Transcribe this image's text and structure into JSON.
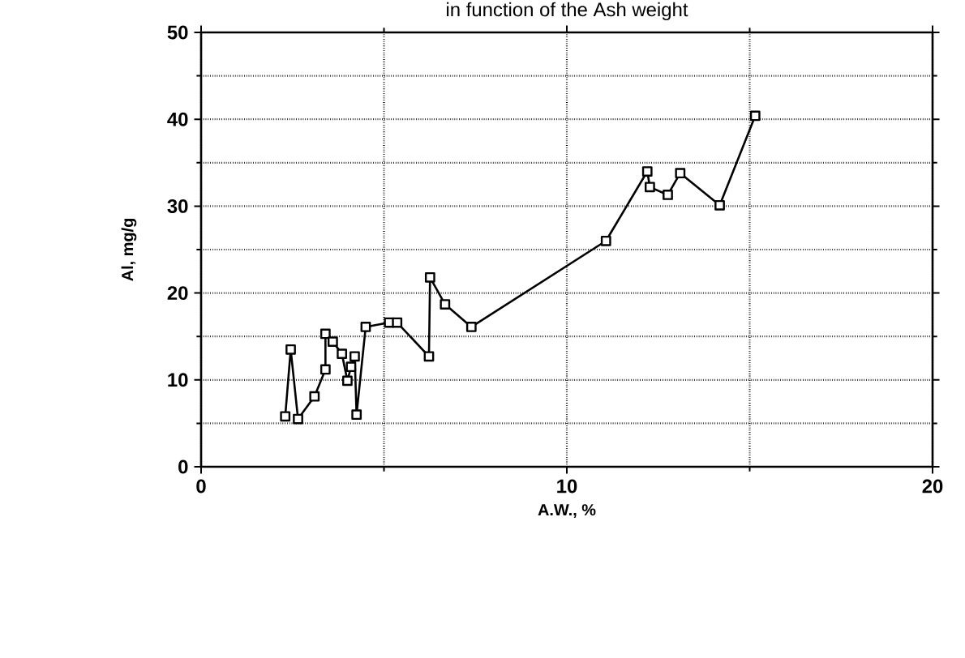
{
  "chart_data": {
    "type": "line",
    "title": "in function of the Ash weight",
    "xlabel": "A.W., %",
    "ylabel": "Al,  mg/g",
    "xlim": [
      0,
      20
    ],
    "xticks": [
      0,
      10,
      20
    ],
    "ylim": [
      0,
      50
    ],
    "yticks": [
      0,
      10,
      20,
      30,
      40,
      50
    ],
    "grid": true,
    "marker": "square",
    "line_style": "solid",
    "series": [
      {
        "color": "#000000",
        "x": [
          2.3,
          2.45,
          2.65,
          3.1,
          3.4,
          3.4,
          3.6,
          3.85,
          4.0,
          4.1,
          4.2,
          4.25,
          4.5,
          5.14,
          5.36,
          6.23,
          6.26,
          6.67,
          7.39,
          11.07,
          12.2,
          12.27,
          12.76,
          13.1,
          14.18,
          15.15
        ],
        "values": [
          5.8,
          13.5,
          5.5,
          8.1,
          11.2,
          15.3,
          14.4,
          13,
          9.9,
          11.5,
          12.7,
          6,
          16.1,
          16.6,
          16.6,
          12.7,
          21.8,
          18.7,
          16.1,
          26,
          34,
          32.2,
          31.3,
          33.8,
          30.1,
          40.4
        ]
      }
    ]
  }
}
